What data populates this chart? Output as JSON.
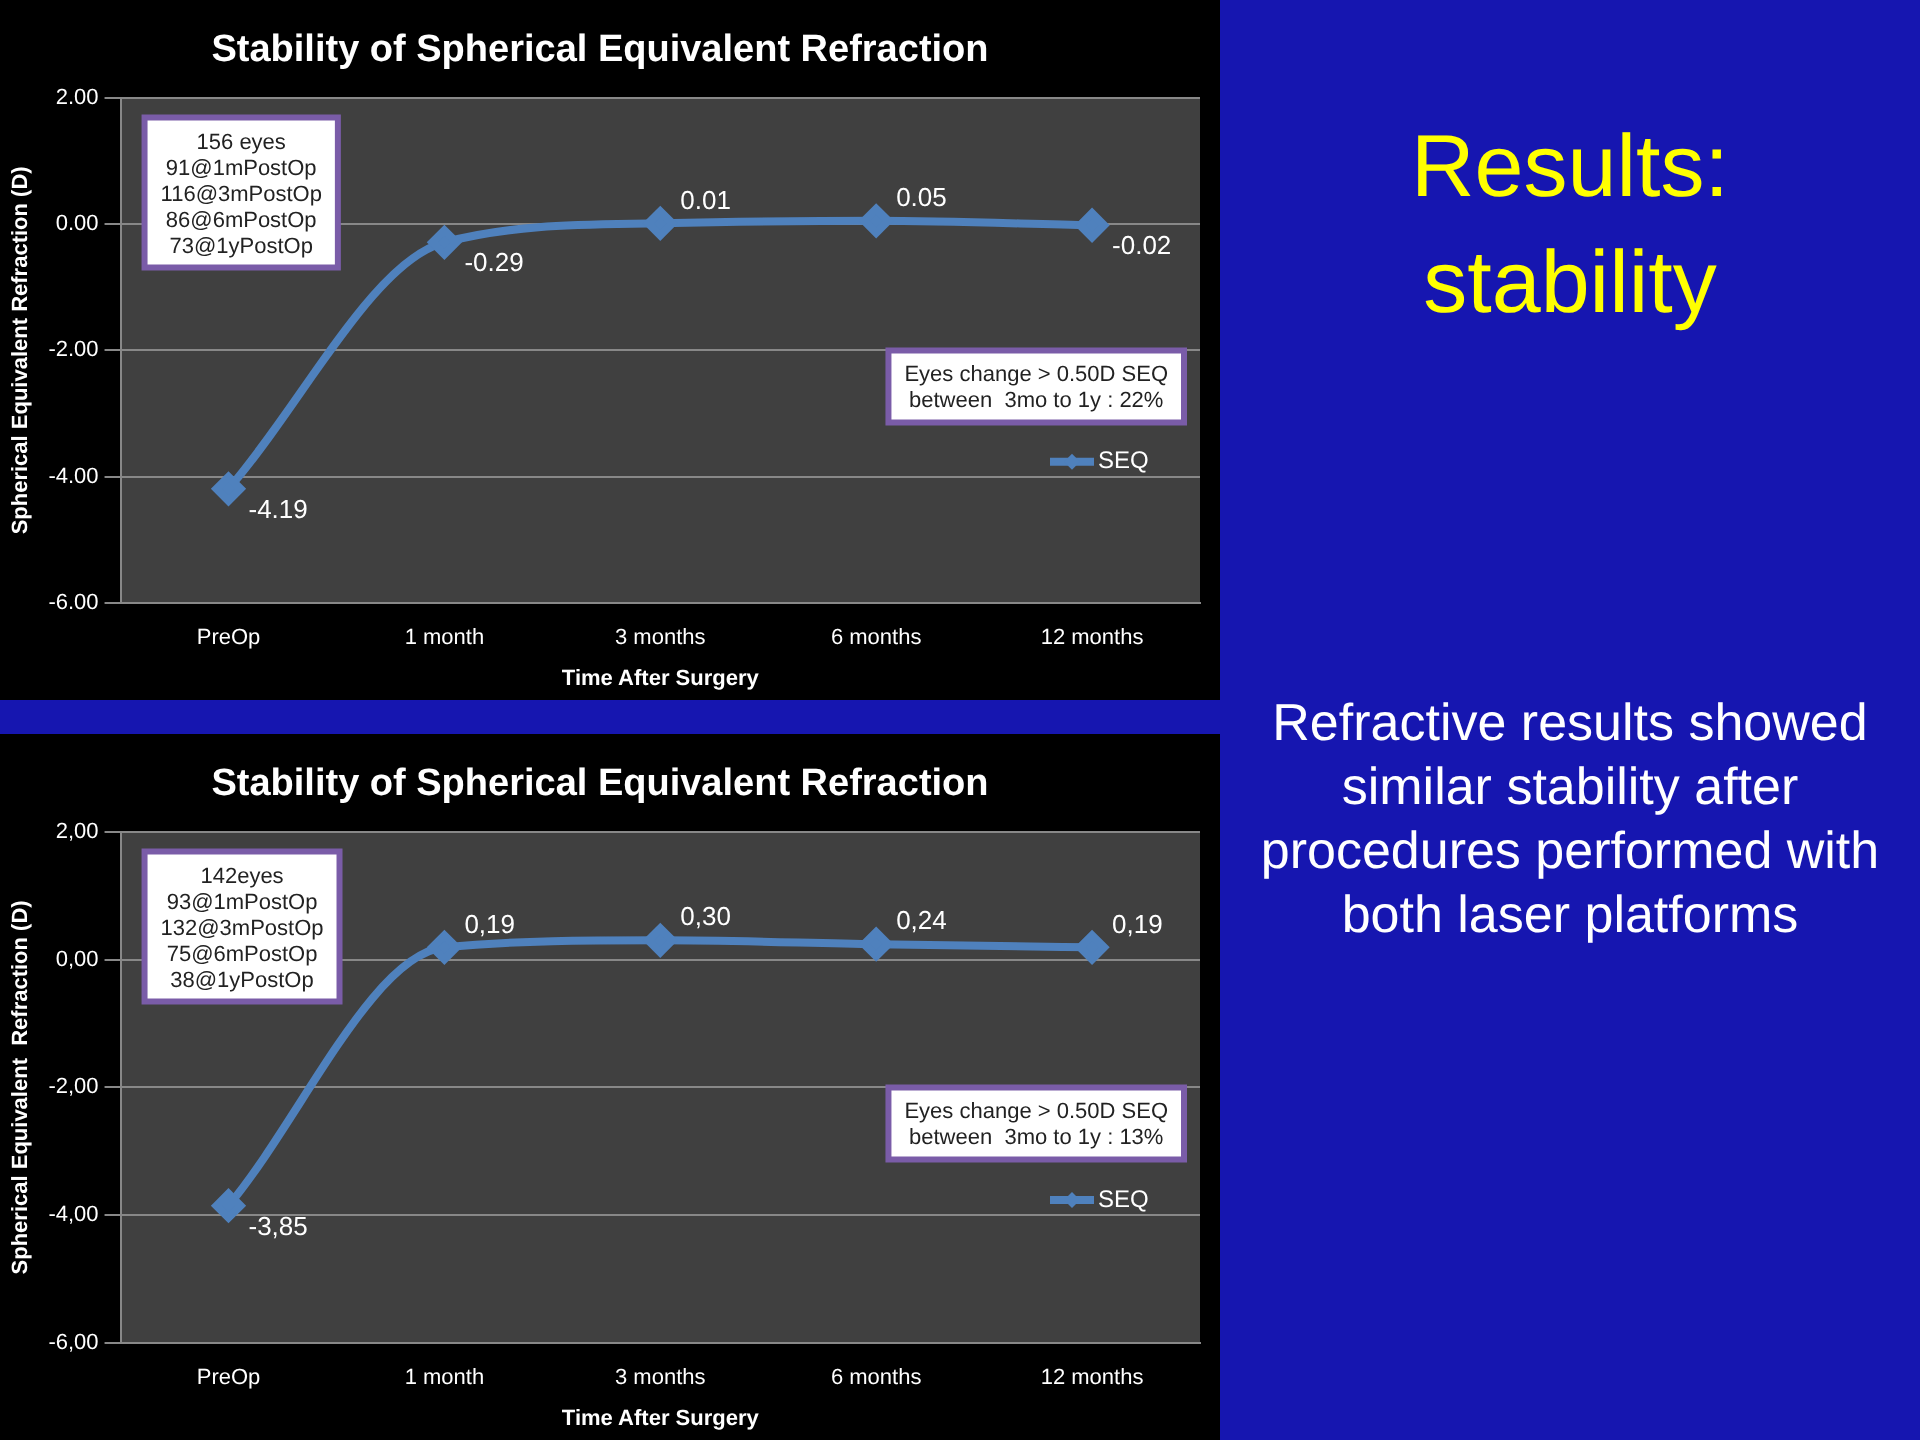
{
  "chart_data": [
    {
      "type": "line",
      "title": "Stability of Spherical Equivalent Refraction",
      "xlabel": "Time After Surgery",
      "ylabel": "Spherical Equivalent Refraction (D)",
      "categories": [
        "PreOp",
        "1 month",
        "3 months",
        "6 months",
        "12 months"
      ],
      "series": [
        {
          "name": "SEQ",
          "color": "#4f81bd",
          "values": [
            -4.19,
            -0.29,
            0.01,
            0.05,
            -0.02
          ],
          "value_labels": [
            "-4.19",
            "-0.29",
            "0.01",
            "0.05",
            "-0.02"
          ]
        }
      ],
      "ylim": [
        -6,
        2
      ],
      "yticks": [
        {
          "value": -6,
          "label": "-6.00"
        },
        {
          "value": -4,
          "label": "-4.00"
        },
        {
          "value": -2,
          "label": "-2.00"
        },
        {
          "value": 0,
          "label": "0.00"
        },
        {
          "value": 2,
          "label": "2.00"
        }
      ],
      "grid": "y",
      "legend": "right",
      "marker": "diamond",
      "line_style": "solid",
      "annotations": [
        "156 eyes\n91@1mPostOp\n116@3mPostOp\n86@6mPostOp\n73@1yPostOp",
        "Eyes change > 0.50D SEQ\nbetween  3mo to 1y : 22%"
      ]
    },
    {
      "type": "line",
      "title": "Stability of Spherical Equivalent Refraction",
      "xlabel": "Time After Surgery",
      "ylabel": "Spherical Equivalent  Refraction (D)",
      "categories": [
        "PreOp",
        "1 month",
        "3 months",
        "6 months",
        "12 months"
      ],
      "series": [
        {
          "name": "SEQ",
          "color": "#4f81bd",
          "values": [
            -3.85,
            0.19,
            0.3,
            0.24,
            0.19
          ],
          "value_labels": [
            "-3,85",
            "0,19",
            "0,30",
            "0,24",
            "0,19"
          ]
        }
      ],
      "ylim": [
        -6,
        2
      ],
      "yticks": [
        {
          "value": -6,
          "label": "-6,00"
        },
        {
          "value": -4,
          "label": "-4,00"
        },
        {
          "value": -2,
          "label": "-2,00"
        },
        {
          "value": 0,
          "label": "0,00"
        },
        {
          "value": 2,
          "label": "2,00"
        }
      ],
      "grid": "y",
      "legend": "right",
      "marker": "diamond",
      "line_style": "solid",
      "annotations": [
        "142eyes\n93@1mPostOp\n132@3mPostOp\n75@6mPostOp\n38@1yPostOp",
        "Eyes change > 0.50D SEQ\nbetween  3mo to 1y : 13%"
      ]
    },
    {
      "type": "other",
      "title": "Results:\nstability",
      "annotations": [
        "Refractive results showed similar stability after procedures performed with both laser platforms"
      ]
    }
  ]
}
